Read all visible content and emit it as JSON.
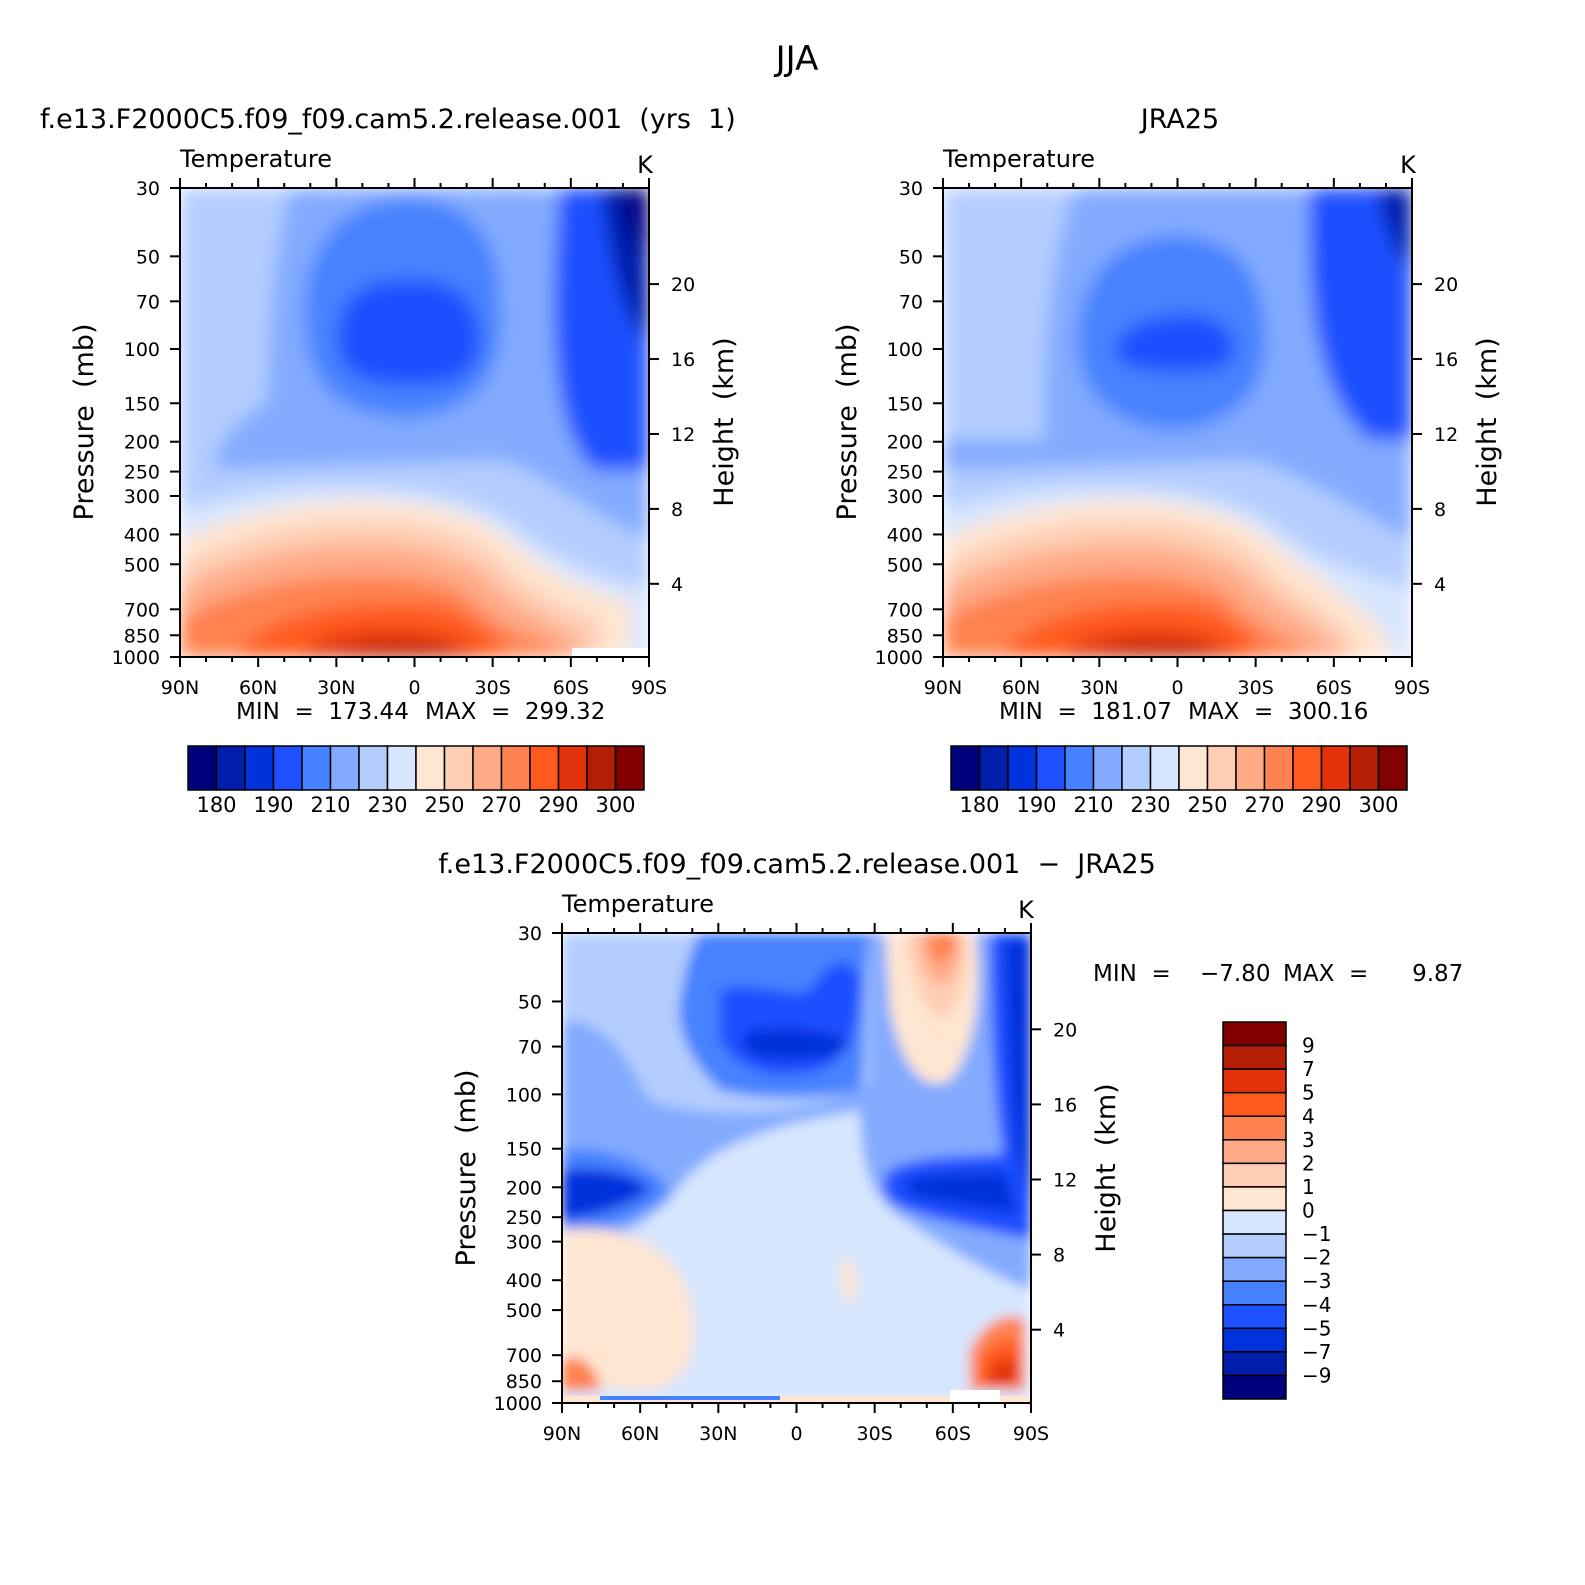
{
  "figure": {
    "season": "JJA",
    "panel_titles": {
      "model": "f.e13.F2000C5.f09_f09.cam5.2.release.001  (yrs  1)",
      "obs": "JRA25",
      "diff": "f.e13.F2000C5.f09_f09.cam5.2.release.001  −  JRA25"
    },
    "variable": "Temperature",
    "units": "K",
    "left_axis_label": "Pressure  (mb)",
    "right_axis_label": "Height  (km)"
  },
  "colors": {
    "abs_palette": [
      "#00007d",
      "#001eaa",
      "#0032dc",
      "#1e50ff",
      "#4682ff",
      "#82aaff",
      "#b4cdff",
      "#d7e6ff",
      "#ffe6d2",
      "#ffcdb4",
      "#ffaa87",
      "#ff8250",
      "#ff5a1e",
      "#e1320a",
      "#b41e05",
      "#820000"
    ],
    "diff_palette": [
      "#00007d",
      "#001eaa",
      "#0032dc",
      "#1e50ff",
      "#4682ff",
      "#82aaff",
      "#b4cdff",
      "#d7e6ff",
      "#ffe6d2",
      "#ffcdb4",
      "#ffaa87",
      "#ff8250",
      "#ff5a1e",
      "#e1320a",
      "#b41e05",
      "#820000"
    ]
  },
  "chart_data": [
    {
      "type": "heatmap",
      "id": "model",
      "title": "f.e13.F2000C5.f09_f09.cam5.2.release.001  (yrs  1)",
      "subtitle": "Temperature",
      "units": "K",
      "x_ticks": [
        "90N",
        "60N",
        "30N",
        "0",
        "30S",
        "60S",
        "90S"
      ],
      "x_values": [
        90,
        60,
        30,
        0,
        -30,
        -60,
        -90
      ],
      "y_ticks": [
        30,
        50,
        70,
        100,
        150,
        200,
        250,
        300,
        400,
        500,
        700,
        850,
        1000
      ],
      "y_range": [
        30,
        1000
      ],
      "y_scale": "log",
      "height_ticks_km": [
        20,
        16,
        12,
        8,
        4
      ],
      "xlabel": "",
      "ylabel": "Pressure  (mb)",
      "y2label": "Height  (km)",
      "min_label": "MIN  =  173.44",
      "max_label": "MAX  =  299.32",
      "min": 173.44,
      "max": 299.32,
      "colorbar_ticks": [
        "180",
        "190",
        "210",
        "230",
        "250",
        "270",
        "290",
        "300"
      ]
    },
    {
      "type": "heatmap",
      "id": "obs",
      "title": "JRA25",
      "subtitle": "Temperature",
      "units": "K",
      "x_ticks": [
        "90N",
        "60N",
        "30N",
        "0",
        "30S",
        "60S",
        "90S"
      ],
      "x_values": [
        90,
        60,
        30,
        0,
        -30,
        -60,
        -90
      ],
      "y_ticks": [
        30,
        50,
        70,
        100,
        150,
        200,
        250,
        300,
        400,
        500,
        700,
        850,
        1000
      ],
      "y_range": [
        30,
        1000
      ],
      "y_scale": "log",
      "height_ticks_km": [
        20,
        16,
        12,
        8,
        4
      ],
      "xlabel": "",
      "ylabel": "Pressure  (mb)",
      "y2label": "Height  (km)",
      "min_label": "MIN  =  181.07",
      "max_label": "MAX  =  300.16",
      "min": 181.07,
      "max": 300.16,
      "colorbar_ticks": [
        "180",
        "190",
        "210",
        "230",
        "250",
        "270",
        "290",
        "300"
      ]
    },
    {
      "type": "heatmap",
      "id": "diff",
      "title": "f.e13.F2000C5.f09_f09.cam5.2.release.001  −  JRA25",
      "subtitle": "Temperature",
      "units": "K",
      "x_ticks": [
        "90N",
        "60N",
        "30N",
        "0",
        "30S",
        "60S",
        "90S"
      ],
      "x_values": [
        90,
        60,
        30,
        0,
        -30,
        -60,
        -90
      ],
      "y_ticks": [
        30,
        50,
        70,
        100,
        150,
        200,
        250,
        300,
        400,
        500,
        700,
        850,
        1000
      ],
      "y_range": [
        30,
        1000
      ],
      "y_scale": "log",
      "height_ticks_km": [
        20,
        16,
        12,
        8,
        4
      ],
      "xlabel": "",
      "ylabel": "Pressure  (mb)",
      "y2label": "Height  (km)",
      "min_label": "MIN  =    −7.80",
      "max_label": "MAX  =      9.87",
      "min": -7.8,
      "max": 9.87,
      "colorbar_ticks": [
        "9",
        "7",
        "5",
        "4",
        "3",
        "2",
        "1",
        "0",
        "−1",
        "−2",
        "−3",
        "−4",
        "−5",
        "−7",
        "−9"
      ]
    }
  ]
}
